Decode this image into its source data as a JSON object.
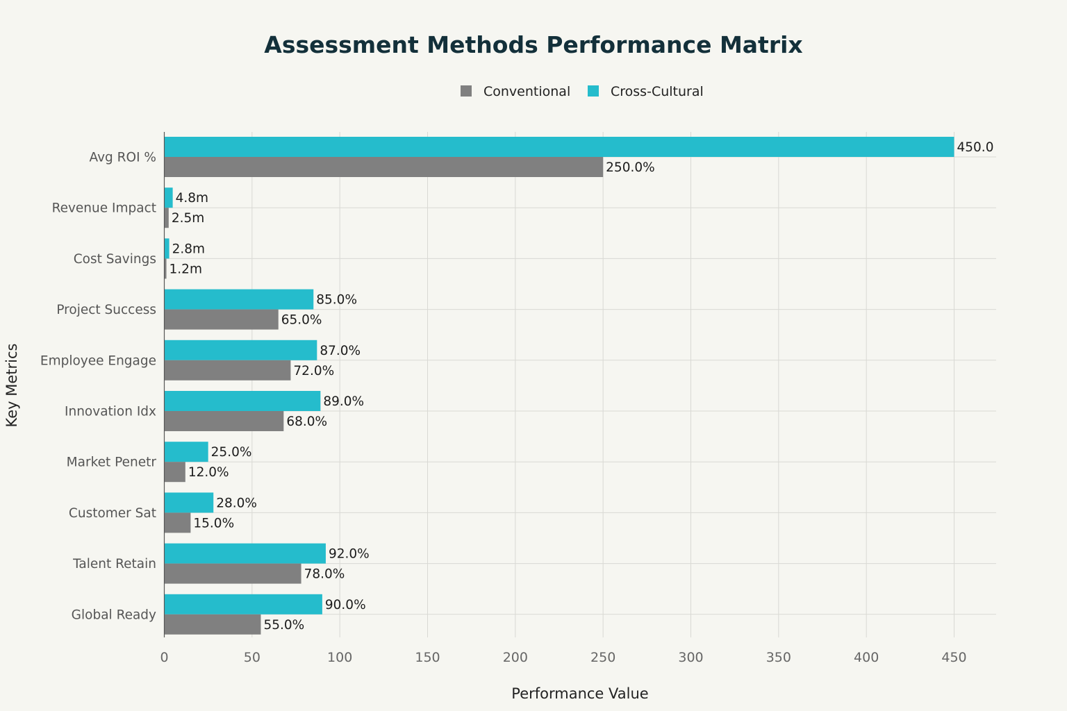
{
  "chart_data": {
    "type": "bar",
    "orientation": "horizontal",
    "title": "Assessment Methods Performance Matrix",
    "xlabel": "Performance Value",
    "ylabel": "Key Metrics",
    "xlim": [
      0,
      470
    ],
    "x_ticks": [
      0,
      50,
      100,
      150,
      200,
      250,
      300,
      350,
      400,
      450
    ],
    "grid": true,
    "legend_position": "top-center",
    "categories": [
      "Avg ROI %",
      "Revenue Impact",
      "Cost Savings",
      "Project Success",
      "Employee Engage",
      "Innovation Idx",
      "Market Penetr",
      "Customer Sat",
      "Talent Retain",
      "Global Ready"
    ],
    "series": [
      {
        "name": "Conventional",
        "color": "#808080",
        "values": [
          250,
          2.5,
          1.2,
          65,
          72,
          68,
          12,
          15,
          78,
          55
        ],
        "labels": [
          "250.0%",
          "2.5m",
          "1.2m",
          "65.0%",
          "72.0%",
          "68.0%",
          "12.0%",
          "15.0%",
          "78.0%",
          "55.0%"
        ]
      },
      {
        "name": "Cross-Cultural",
        "color": "#25bccc",
        "values": [
          450,
          4.8,
          2.8,
          85,
          87,
          89,
          25,
          28,
          92,
          90
        ],
        "labels": [
          "450.0",
          "4.8m",
          "2.8m",
          "85.0%",
          "87.0%",
          "89.0%",
          "25.0%",
          "28.0%",
          "92.0%",
          "90.0%"
        ]
      }
    ]
  }
}
